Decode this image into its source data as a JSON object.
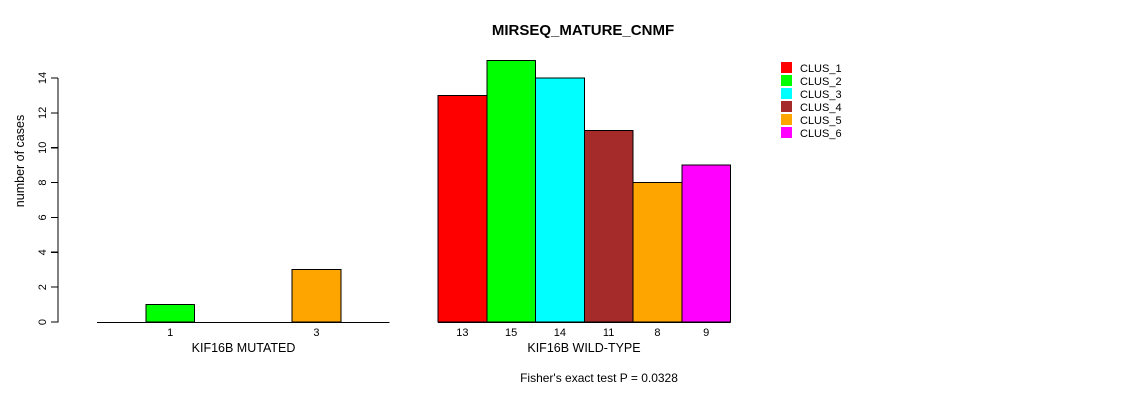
{
  "chart_data": {
    "type": "bar",
    "title": "MIRSEQ_MATURE_CNMF",
    "ylabel": "number of cases",
    "xlabel": "",
    "ylim": [
      0,
      14
    ],
    "yticks": [
      0,
      2,
      4,
      6,
      8,
      10,
      12,
      14
    ],
    "grid": false,
    "annotation": "Fisher's exact test P = 0.0328",
    "categories": [
      "CLUS_1",
      "CLUS_2",
      "CLUS_3",
      "CLUS_4",
      "CLUS_5",
      "CLUS_6"
    ],
    "colors": [
      "#FF0000",
      "#00FF00",
      "#00FFFF",
      "#A52A2A",
      "#FFA500",
      "#FF00FF"
    ],
    "series": [
      {
        "name": "KIF16B MUTATED",
        "values": [
          0,
          1,
          0,
          0,
          3,
          0
        ]
      },
      {
        "name": "KIF16B WILD-TYPE",
        "values": [
          13,
          15,
          14,
          11,
          8,
          9
        ]
      }
    ],
    "bar_tick_labels": [
      [
        "",
        "1",
        "",
        "",
        "3",
        ""
      ],
      [
        "13",
        "15",
        "14",
        "11",
        "8",
        "9"
      ]
    ],
    "legend": {
      "position": "topright",
      "entries": [
        {
          "label": "CLUS_1",
          "color": "#FF0000"
        },
        {
          "label": "CLUS_2",
          "color": "#00FF00"
        },
        {
          "label": "CLUS_3",
          "color": "#00FFFF"
        },
        {
          "label": "CLUS_4",
          "color": "#A52A2A"
        },
        {
          "label": "CLUS_5",
          "color": "#FFA500"
        },
        {
          "label": "CLUS_6",
          "color": "#FF00FF"
        }
      ]
    }
  }
}
